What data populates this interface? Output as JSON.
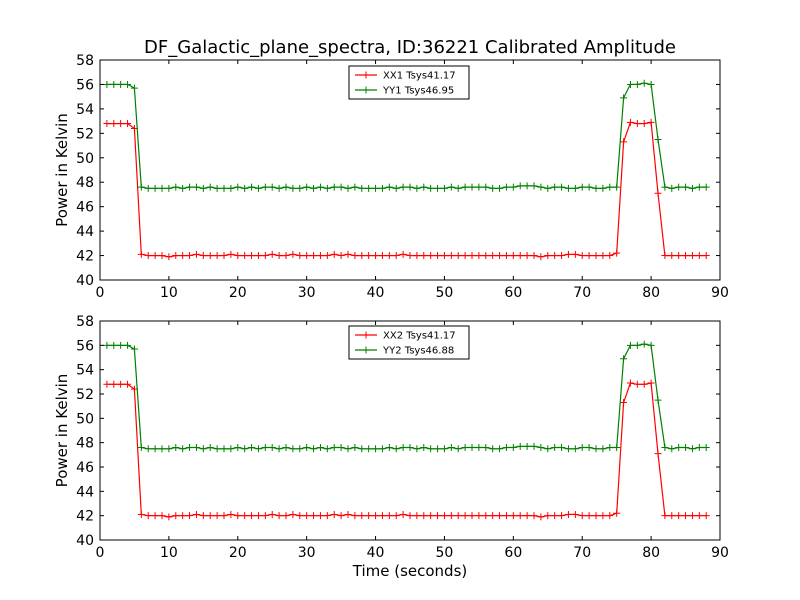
{
  "title": "DF_Galactic_plane_spectra, ID:36221 Calibrated Amplitude",
  "chart_data": [
    {
      "type": "line",
      "title": "DF_Galactic_plane_spectra, ID:36221 Calibrated Amplitude",
      "xlabel": "",
      "ylabel": "Power in Kelvin",
      "xlim": [
        0,
        90
      ],
      "ylim": [
        40,
        58
      ],
      "xticks": [
        "0",
        "10",
        "20",
        "30",
        "40",
        "50",
        "60",
        "70",
        "80",
        "90"
      ],
      "yticks": [
        "40",
        "42",
        "44",
        "46",
        "48",
        "50",
        "52",
        "54",
        "56",
        "58"
      ],
      "legend_position": "top-center",
      "x": [
        1,
        2,
        3,
        4,
        5,
        6,
        7,
        8,
        9,
        10,
        11,
        12,
        13,
        14,
        15,
        16,
        17,
        18,
        19,
        20,
        21,
        22,
        23,
        24,
        25,
        26,
        27,
        28,
        29,
        30,
        31,
        32,
        33,
        34,
        35,
        36,
        37,
        38,
        39,
        40,
        41,
        42,
        43,
        44,
        45,
        46,
        47,
        48,
        49,
        50,
        51,
        52,
        53,
        54,
        55,
        56,
        57,
        58,
        59,
        60,
        61,
        62,
        63,
        64,
        65,
        66,
        67,
        68,
        69,
        70,
        71,
        72,
        73,
        74,
        75,
        76,
        77,
        78,
        79,
        80,
        81,
        82,
        83,
        84,
        85,
        86,
        87,
        88
      ],
      "series": [
        {
          "name": "XX1 Tsys41.17",
          "color": "#ff0000",
          "values": [
            52.8,
            52.8,
            52.8,
            52.8,
            52.4,
            42.1,
            42.0,
            42.0,
            42.0,
            41.9,
            42.0,
            42.0,
            42.0,
            42.1,
            42.0,
            42.0,
            42.0,
            42.0,
            42.1,
            42.0,
            42.0,
            42.0,
            42.0,
            42.0,
            42.1,
            42.0,
            42.0,
            42.1,
            42.0,
            42.0,
            42.0,
            42.0,
            42.0,
            42.1,
            42.0,
            42.1,
            42.0,
            42.0,
            42.0,
            42.0,
            42.0,
            42.0,
            42.0,
            42.1,
            42.0,
            42.0,
            42.0,
            42.0,
            42.0,
            42.0,
            42.0,
            42.0,
            42.0,
            42.0,
            42.0,
            42.0,
            42.0,
            42.0,
            42.0,
            42.0,
            42.0,
            42.0,
            42.0,
            41.9,
            42.0,
            42.0,
            42.0,
            42.1,
            42.1,
            42.0,
            42.0,
            42.0,
            42.0,
            42.0,
            42.2,
            51.3,
            52.9,
            52.8,
            52.8,
            52.9,
            47.1,
            42.0,
            42.0,
            42.0,
            42.0,
            42.0,
            42.0,
            42.0
          ]
        },
        {
          "name": "YY1 Tsys46.95",
          "color": "#008000",
          "values": [
            56.0,
            56.0,
            56.0,
            56.0,
            55.7,
            47.6,
            47.5,
            47.5,
            47.5,
            47.5,
            47.6,
            47.5,
            47.6,
            47.6,
            47.5,
            47.6,
            47.5,
            47.5,
            47.5,
            47.6,
            47.5,
            47.6,
            47.5,
            47.6,
            47.6,
            47.5,
            47.6,
            47.5,
            47.5,
            47.6,
            47.5,
            47.6,
            47.5,
            47.6,
            47.6,
            47.5,
            47.6,
            47.5,
            47.5,
            47.5,
            47.5,
            47.6,
            47.5,
            47.6,
            47.6,
            47.5,
            47.6,
            47.5,
            47.5,
            47.5,
            47.6,
            47.5,
            47.6,
            47.6,
            47.6,
            47.6,
            47.5,
            47.5,
            47.6,
            47.6,
            47.7,
            47.7,
            47.7,
            47.6,
            47.5,
            47.6,
            47.6,
            47.5,
            47.5,
            47.6,
            47.6,
            47.5,
            47.5,
            47.6,
            47.6,
            54.9,
            56.0,
            56.0,
            56.1,
            56.0,
            51.5,
            47.6,
            47.5,
            47.6,
            47.6,
            47.5,
            47.6,
            47.6
          ]
        }
      ]
    },
    {
      "type": "line",
      "title": "",
      "xlabel": "Time (seconds)",
      "ylabel": "Power in Kelvin",
      "xlim": [
        0,
        90
      ],
      "ylim": [
        40,
        58
      ],
      "xticks": [
        "0",
        "10",
        "20",
        "30",
        "40",
        "50",
        "60",
        "70",
        "80",
        "90"
      ],
      "yticks": [
        "40",
        "42",
        "44",
        "46",
        "48",
        "50",
        "52",
        "54",
        "56",
        "58"
      ],
      "legend_position": "top-center",
      "x": [
        1,
        2,
        3,
        4,
        5,
        6,
        7,
        8,
        9,
        10,
        11,
        12,
        13,
        14,
        15,
        16,
        17,
        18,
        19,
        20,
        21,
        22,
        23,
        24,
        25,
        26,
        27,
        28,
        29,
        30,
        31,
        32,
        33,
        34,
        35,
        36,
        37,
        38,
        39,
        40,
        41,
        42,
        43,
        44,
        45,
        46,
        47,
        48,
        49,
        50,
        51,
        52,
        53,
        54,
        55,
        56,
        57,
        58,
        59,
        60,
        61,
        62,
        63,
        64,
        65,
        66,
        67,
        68,
        69,
        70,
        71,
        72,
        73,
        74,
        75,
        76,
        77,
        78,
        79,
        80,
        81,
        82,
        83,
        84,
        85,
        86,
        87,
        88
      ],
      "series": [
        {
          "name": "XX2 Tsys41.17",
          "color": "#ff0000",
          "values": [
            52.8,
            52.8,
            52.8,
            52.8,
            52.4,
            42.1,
            42.0,
            42.0,
            42.0,
            41.9,
            42.0,
            42.0,
            42.0,
            42.1,
            42.0,
            42.0,
            42.0,
            42.0,
            42.1,
            42.0,
            42.0,
            42.0,
            42.0,
            42.0,
            42.1,
            42.0,
            42.0,
            42.1,
            42.0,
            42.0,
            42.0,
            42.0,
            42.0,
            42.1,
            42.0,
            42.1,
            42.0,
            42.0,
            42.0,
            42.0,
            42.0,
            42.0,
            42.0,
            42.1,
            42.0,
            42.0,
            42.0,
            42.0,
            42.0,
            42.0,
            42.0,
            42.0,
            42.0,
            42.0,
            42.0,
            42.0,
            42.0,
            42.0,
            42.0,
            42.0,
            42.0,
            42.0,
            42.0,
            41.9,
            42.0,
            42.0,
            42.0,
            42.1,
            42.1,
            42.0,
            42.0,
            42.0,
            42.0,
            42.0,
            42.2,
            51.3,
            52.9,
            52.8,
            52.8,
            52.9,
            47.1,
            42.0,
            42.0,
            42.0,
            42.0,
            42.0,
            42.0,
            42.0
          ]
        },
        {
          "name": "YY2 Tsys46.88",
          "color": "#008000",
          "values": [
            56.0,
            56.0,
            56.0,
            56.0,
            55.7,
            47.6,
            47.5,
            47.5,
            47.5,
            47.5,
            47.6,
            47.5,
            47.6,
            47.6,
            47.5,
            47.6,
            47.5,
            47.5,
            47.5,
            47.6,
            47.5,
            47.6,
            47.5,
            47.6,
            47.6,
            47.5,
            47.6,
            47.5,
            47.5,
            47.6,
            47.5,
            47.6,
            47.5,
            47.6,
            47.6,
            47.5,
            47.6,
            47.5,
            47.5,
            47.5,
            47.5,
            47.6,
            47.5,
            47.6,
            47.6,
            47.5,
            47.6,
            47.5,
            47.5,
            47.5,
            47.6,
            47.5,
            47.6,
            47.6,
            47.6,
            47.6,
            47.5,
            47.5,
            47.6,
            47.6,
            47.7,
            47.7,
            47.7,
            47.6,
            47.5,
            47.6,
            47.6,
            47.5,
            47.5,
            47.6,
            47.6,
            47.5,
            47.5,
            47.6,
            47.6,
            54.9,
            56.0,
            56.0,
            56.1,
            56.0,
            51.5,
            47.6,
            47.5,
            47.6,
            47.6,
            47.5,
            47.6,
            47.6
          ]
        }
      ]
    }
  ]
}
